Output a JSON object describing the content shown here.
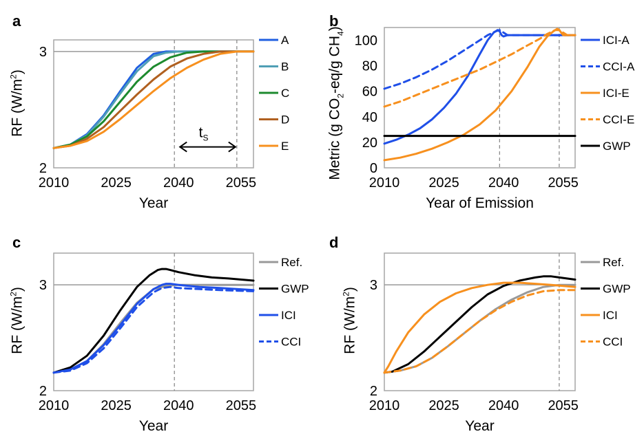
{
  "colors": {
    "A": "#1f5fe0",
    "B": "#4f9fb5",
    "C": "#1d8a2e",
    "D": "#b06020",
    "E": "#f7901e",
    "ICI": "#1f4fe8",
    "ICI_E": "#f7901e",
    "GWP": "#000000",
    "Ref": "#999999",
    "frame": "#a6a6a6",
    "vline": "#8c8c8c"
  },
  "chart_data": [
    {
      "id": "a",
      "label": "a",
      "type": "line",
      "xlabel": "Year",
      "ylabel_main": "RF (W/m",
      "ylabel_sup": "2",
      "ylabel_end": ")",
      "xlim": [
        2010,
        2058
      ],
      "ylim": [
        2,
        3.1
      ],
      "xticks": [
        2010,
        2025,
        2040,
        2055
      ],
      "yticks": [
        2,
        3
      ],
      "hline": 3,
      "vlines": [
        2039,
        2054
      ],
      "annotation": {
        "text": "t",
        "sub": "S",
        "from": 2040,
        "to": 2054,
        "y": 2.18
      },
      "series": [
        {
          "name": "A",
          "color_key": "A",
          "dash": false,
          "x": [
            2010,
            2014,
            2018,
            2022,
            2026,
            2030,
            2034,
            2037,
            2040,
            2045,
            2050,
            2058
          ],
          "y": [
            2.17,
            2.2,
            2.29,
            2.45,
            2.66,
            2.86,
            2.98,
            3.0,
            3.0,
            3.0,
            3.0,
            3.0
          ]
        },
        {
          "name": "B",
          "color_key": "B",
          "dash": false,
          "x": [
            2010,
            2014,
            2018,
            2022,
            2026,
            2030,
            2034,
            2037,
            2040,
            2045,
            2050,
            2058
          ],
          "y": [
            2.17,
            2.2,
            2.28,
            2.44,
            2.64,
            2.83,
            2.96,
            2.99,
            3.0,
            3.0,
            3.0,
            3.0
          ]
        },
        {
          "name": "C",
          "color_key": "C",
          "dash": false,
          "x": [
            2010,
            2014,
            2018,
            2022,
            2026,
            2030,
            2034,
            2038,
            2042,
            2046,
            2050,
            2058
          ],
          "y": [
            2.17,
            2.2,
            2.27,
            2.4,
            2.57,
            2.74,
            2.87,
            2.95,
            2.99,
            3.0,
            3.0,
            3.0
          ]
        },
        {
          "name": "D",
          "color_key": "D",
          "dash": false,
          "x": [
            2010,
            2014,
            2018,
            2022,
            2026,
            2030,
            2034,
            2038,
            2042,
            2046,
            2050,
            2058
          ],
          "y": [
            2.17,
            2.19,
            2.25,
            2.35,
            2.49,
            2.63,
            2.76,
            2.87,
            2.94,
            2.98,
            3.0,
            3.0
          ]
        },
        {
          "name": "E",
          "color_key": "E",
          "dash": false,
          "x": [
            2010,
            2014,
            2018,
            2022,
            2026,
            2030,
            2034,
            2038,
            2042,
            2046,
            2050,
            2054,
            2058
          ],
          "y": [
            2.17,
            2.19,
            2.23,
            2.31,
            2.42,
            2.54,
            2.66,
            2.77,
            2.86,
            2.93,
            2.98,
            3.0,
            3.0
          ]
        }
      ]
    },
    {
      "id": "b",
      "label": "b",
      "type": "line",
      "xlabel": "Year of Emission",
      "ylabel_main": "Metric (g CO",
      "ylabel_sub1": "2",
      "ylabel_mid": "-eq/g CH",
      "ylabel_sub2": "4",
      "ylabel_end": ")",
      "xlim": [
        2010,
        2058
      ],
      "ylim": [
        0,
        110
      ],
      "xticks": [
        2010,
        2025,
        2040,
        2055
      ],
      "yticks": [
        0,
        20,
        40,
        60,
        80,
        100
      ],
      "vlines": [
        2039,
        2054
      ],
      "series": [
        {
          "name": "ICI-A",
          "color_key": "ICI",
          "dash": false,
          "x": [
            2010,
            2013,
            2016,
            2019,
            2022,
            2025,
            2028,
            2031,
            2034,
            2036,
            2037.5,
            2038.5,
            2039,
            2039.5,
            2040,
            2041,
            2045,
            2058
          ],
          "y": [
            19,
            22,
            26,
            31,
            38,
            47,
            58,
            72,
            89,
            100,
            106,
            108,
            107,
            104,
            103,
            104,
            104,
            104
          ]
        },
        {
          "name": "CCI-A",
          "color_key": "ICI",
          "dash": true,
          "x": [
            2010,
            2014,
            2018,
            2022,
            2026,
            2030,
            2033,
            2036,
            2038,
            2039,
            2040,
            2041,
            2045,
            2058
          ],
          "y": [
            62,
            66,
            71,
            77,
            84,
            92,
            98,
            104,
            107,
            108,
            106,
            104,
            104,
            104
          ]
        },
        {
          "name": "ICI-E",
          "color_key": "ICI_E",
          "dash": false,
          "x": [
            2010,
            2014,
            2018,
            2022,
            2026,
            2030,
            2034,
            2038,
            2042,
            2046,
            2049,
            2051,
            2052.5,
            2053.5,
            2054,
            2054.5,
            2055,
            2056,
            2058
          ],
          "y": [
            6,
            8,
            11,
            15,
            20,
            26,
            34,
            45,
            60,
            79,
            95,
            103,
            107,
            109,
            108,
            106,
            104,
            104,
            104
          ]
        },
        {
          "name": "CCI-E",
          "color_key": "ICI_E",
          "dash": true,
          "x": [
            2010,
            2014,
            2018,
            2022,
            2026,
            2030,
            2034,
            2038,
            2042,
            2046,
            2049,
            2051,
            2053,
            2054,
            2055,
            2056,
            2058
          ],
          "y": [
            48,
            52,
            57,
            62,
            67,
            72,
            77,
            83,
            89,
            96,
            101,
            105,
            108,
            108,
            106,
            104,
            104
          ]
        },
        {
          "name": "GWP",
          "color_key": "GWP",
          "dash": false,
          "x": [
            2010,
            2058
          ],
          "y": [
            25,
            25
          ]
        }
      ]
    },
    {
      "id": "c",
      "label": "c",
      "type": "line",
      "xlabel": "Year",
      "ylabel_main": "RF (W/m",
      "ylabel_sup": "2",
      "ylabel_end": ")",
      "xlim": [
        2010,
        2058
      ],
      "ylim": [
        2,
        3.3
      ],
      "xticks": [
        2010,
        2025,
        2040,
        2055
      ],
      "yticks": [
        2,
        3
      ],
      "hline": 3,
      "vlines": [
        2039
      ],
      "series": [
        {
          "name": "Ref.",
          "color_key": "Ref",
          "dash": false,
          "x": [
            2010,
            2014,
            2018,
            2022,
            2026,
            2030,
            2034,
            2037,
            2040,
            2045,
            2050,
            2058
          ],
          "y": [
            2.17,
            2.2,
            2.28,
            2.44,
            2.64,
            2.83,
            2.96,
            2.99,
            3.0,
            3.0,
            3.0,
            3.0
          ]
        },
        {
          "name": "GWP",
          "color_key": "GWP",
          "dash": false,
          "x": [
            2010,
            2014,
            2018,
            2022,
            2026,
            2030,
            2033,
            2035,
            2036,
            2037,
            2038,
            2040,
            2044,
            2048,
            2052,
            2058
          ],
          "y": [
            2.17,
            2.22,
            2.33,
            2.52,
            2.76,
            2.98,
            3.09,
            3.14,
            3.15,
            3.15,
            3.14,
            3.12,
            3.09,
            3.07,
            3.06,
            3.04
          ]
        },
        {
          "name": "ICI",
          "color_key": "ICI",
          "dash": false,
          "x": [
            2010,
            2014,
            2018,
            2022,
            2026,
            2030,
            2034,
            2036,
            2037,
            2038,
            2040,
            2045,
            2050,
            2058
          ],
          "y": [
            2.17,
            2.2,
            2.28,
            2.43,
            2.62,
            2.82,
            2.96,
            3.0,
            3.01,
            3.01,
            3.0,
            2.98,
            2.97,
            2.95
          ]
        },
        {
          "name": "CCI",
          "color_key": "ICI",
          "dash": true,
          "x": [
            2010,
            2014,
            2018,
            2022,
            2026,
            2030,
            2034,
            2036,
            2038,
            2040,
            2045,
            2050,
            2058
          ],
          "y": [
            2.17,
            2.19,
            2.26,
            2.4,
            2.59,
            2.79,
            2.93,
            2.97,
            2.98,
            2.97,
            2.96,
            2.95,
            2.94
          ]
        }
      ]
    },
    {
      "id": "d",
      "label": "d",
      "type": "line",
      "xlabel": "Year",
      "ylabel_main": "RF (W/m",
      "ylabel_sup": "2",
      "ylabel_end": ")",
      "xlim": [
        2010,
        2058
      ],
      "ylim": [
        2,
        3.3
      ],
      "xticks": [
        2010,
        2025,
        2040,
        2055
      ],
      "yticks": [
        2,
        3
      ],
      "hline": 3,
      "vlines": [
        2054
      ],
      "series": [
        {
          "name": "Ref.",
          "color_key": "Ref",
          "dash": false,
          "x": [
            2010,
            2014,
            2018,
            2022,
            2026,
            2030,
            2034,
            2038,
            2042,
            2046,
            2050,
            2054,
            2058
          ],
          "y": [
            2.17,
            2.19,
            2.23,
            2.31,
            2.42,
            2.54,
            2.66,
            2.77,
            2.86,
            2.93,
            2.98,
            3.0,
            3.0
          ]
        },
        {
          "name": "GWP",
          "color_key": "GWP",
          "dash": false,
          "x": [
            2010,
            2012,
            2016,
            2020,
            2024,
            2028,
            2032,
            2036,
            2040,
            2044,
            2048,
            2050,
            2052,
            2054,
            2058
          ],
          "y": [
            2.17,
            2.18,
            2.25,
            2.37,
            2.51,
            2.65,
            2.79,
            2.91,
            2.99,
            3.04,
            3.07,
            3.08,
            3.08,
            3.07,
            3.05
          ]
        },
        {
          "name": "ICI",
          "color_key": "ICI_E",
          "dash": false,
          "x": [
            2010,
            2011,
            2013,
            2016,
            2020,
            2024,
            2028,
            2032,
            2036,
            2040,
            2044,
            2048,
            2052,
            2058
          ],
          "y": [
            2.17,
            2.23,
            2.37,
            2.55,
            2.72,
            2.84,
            2.92,
            2.97,
            3.0,
            3.02,
            3.02,
            3.01,
            3.0,
            2.98
          ]
        },
        {
          "name": "CCI",
          "color_key": "ICI_E",
          "dash": true,
          "x": [
            2010,
            2014,
            2018,
            2022,
            2026,
            2030,
            2034,
            2038,
            2042,
            2046,
            2050,
            2054,
            2058
          ],
          "y": [
            2.17,
            2.19,
            2.23,
            2.31,
            2.42,
            2.54,
            2.66,
            2.76,
            2.84,
            2.9,
            2.94,
            2.95,
            2.95
          ]
        }
      ]
    }
  ]
}
